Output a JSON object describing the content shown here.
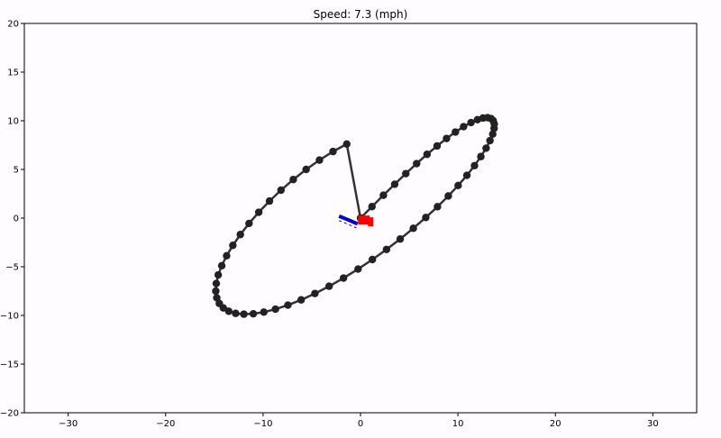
{
  "chart_data": {
    "type": "line",
    "title": "Speed: 7.3 (mph)",
    "xlabel": "",
    "ylabel": "",
    "xlim": [
      -34.5,
      34.5
    ],
    "ylim": [
      -20,
      20
    ],
    "xticks": [
      -30,
      -20,
      -10,
      0,
      10,
      20,
      30
    ],
    "yticks": [
      -20,
      -15,
      -10,
      -5,
      0,
      5,
      10,
      15,
      20
    ],
    "grid": false,
    "series": [
      {
        "kind": "figure-eight-track",
        "color": "#222222",
        "x": [
          0.0,
          1.18,
          2.35,
          3.51,
          4.65,
          5.76,
          6.83,
          7.86,
          8.83,
          9.74,
          10.58,
          11.34,
          12.0,
          12.57,
          13.04,
          13.39,
          13.62,
          13.73,
          13.71,
          13.57,
          13.29,
          12.89,
          12.35,
          11.7,
          10.92,
          10.02,
          9.01,
          7.9,
          6.7,
          5.42,
          4.07,
          2.67,
          1.22,
          -0.25,
          -1.74,
          -3.22,
          -4.68,
          -6.09,
          -7.45,
          -8.73,
          -9.92,
          -11.0,
          -11.97,
          -12.81,
          -13.52,
          -14.08,
          -14.49,
          -14.75,
          -14.85,
          -14.8,
          -14.6,
          -14.24,
          -13.74,
          -13.1,
          -12.33,
          -11.44,
          -10.44,
          -9.34,
          -8.16,
          -6.9,
          -5.58,
          -4.21,
          -2.82,
          -1.41
        ],
        "y": [
          0.0,
          1.18,
          2.35,
          3.48,
          4.57,
          5.6,
          6.55,
          7.41,
          8.18,
          8.84,
          9.39,
          9.81,
          10.11,
          10.28,
          10.32,
          10.23,
          10.01,
          9.67,
          9.21,
          8.63,
          7.96,
          7.18,
          6.32,
          5.39,
          4.39,
          3.35,
          2.27,
          1.17,
          0.06,
          -1.05,
          -2.15,
          -3.22,
          -4.26,
          -5.24,
          -6.16,
          -7.0,
          -7.75,
          -8.4,
          -8.94,
          -9.36,
          -9.66,
          -9.83,
          -9.87,
          -9.79,
          -9.57,
          -9.23,
          -8.77,
          -8.19,
          -7.5,
          -6.72,
          -5.84,
          -4.89,
          -3.87,
          -2.8,
          -1.69,
          -0.55,
          0.6,
          1.75,
          2.87,
          3.96,
          5.0,
          5.96,
          6.84,
          7.61
        ],
        "closed": true
      },
      {
        "kind": "vehicle",
        "color": "#ff0000",
        "x": [
          0.4
        ],
        "y": [
          -0.2
        ]
      },
      {
        "kind": "predicted-path",
        "color": "#0000cc",
        "x": [
          -2.2,
          -1.2,
          -0.3
        ],
        "y": [
          0.2,
          -0.2,
          -0.6
        ]
      }
    ]
  }
}
